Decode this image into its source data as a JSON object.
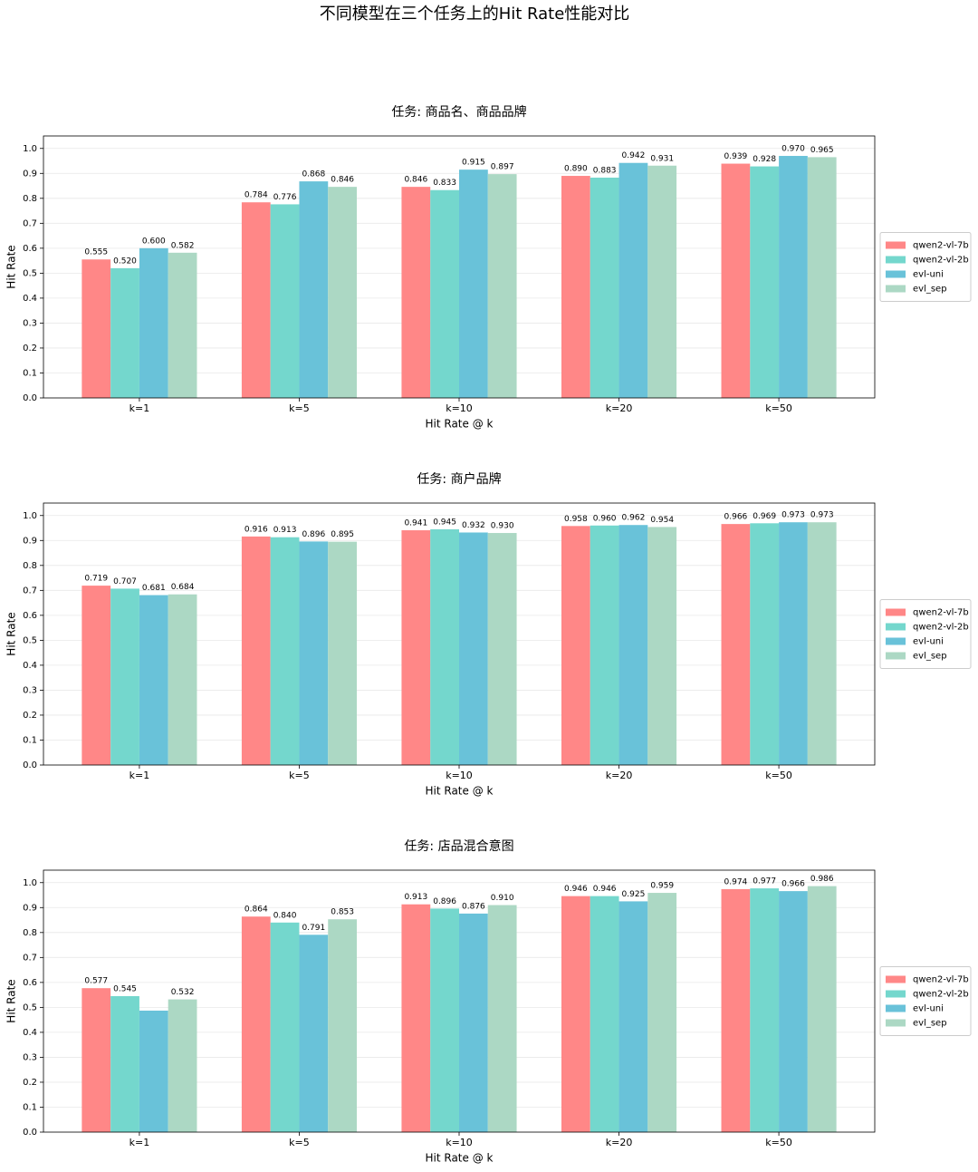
{
  "title": "不同模型在三个任务上的Hit Rate性能对比",
  "chart_data": [
    {
      "type": "bar",
      "title": "任务: 商品名、商品品牌",
      "x_label": "Hit Rate @ k",
      "y_label": "Hit Rate",
      "categories": [
        "k=1",
        "k=5",
        "k=10",
        "k=20",
        "k=50"
      ],
      "series": [
        {
          "name": "qwen2-vl-7b",
          "color": "#ff8787",
          "values": [
            0.555,
            0.784,
            0.846,
            0.89,
            0.939
          ],
          "value_labels": [
            "0.555",
            "0.784",
            "0.846",
            "0.890",
            "0.939"
          ]
        },
        {
          "name": "qwen2-vl-2b",
          "color": "#74d7cd",
          "values": [
            0.52,
            0.776,
            0.833,
            0.883,
            0.928
          ],
          "value_labels": [
            "0.520",
            "0.776",
            "0.833",
            "0.883",
            "0.928"
          ]
        },
        {
          "name": "evl-uni",
          "color": "#69c2d9",
          "values": [
            0.6,
            0.868,
            0.915,
            0.942,
            0.97
          ],
          "value_labels": [
            "0.600",
            "0.868",
            "0.915",
            "0.942",
            "0.970"
          ]
        },
        {
          "name": "evl_sep",
          "color": "#acd8c4",
          "values": [
            0.582,
            0.846,
            0.897,
            0.931,
            0.965
          ],
          "value_labels": [
            "0.582",
            "0.846",
            "0.897",
            "0.931",
            "0.965"
          ]
        }
      ],
      "ylim": [
        0,
        1.05
      ],
      "yticks": [
        {
          "value": 0,
          "label": "0.0"
        },
        0.1,
        0.2,
        0.3,
        0.4,
        0.5,
        0.6,
        0.7,
        0.8,
        0.9,
        {
          "value": 1,
          "label": "1.0"
        }
      ],
      "grid": true,
      "legend": "center right"
    },
    {
      "type": "bar",
      "title": "任务: 商户品牌",
      "x_label": "Hit Rate @ k",
      "y_label": "Hit Rate",
      "categories": [
        "k=1",
        "k=5",
        "k=10",
        "k=20",
        "k=50"
      ],
      "series": [
        {
          "name": "qwen2-vl-7b",
          "color": "#ff8787",
          "values": [
            0.719,
            0.916,
            0.941,
            0.958,
            0.966
          ],
          "value_labels": [
            "0.719",
            "0.916",
            "0.941",
            "0.958",
            "0.966"
          ]
        },
        {
          "name": "qwen2-vl-2b",
          "color": "#74d7cd",
          "values": [
            0.707,
            0.913,
            0.945,
            0.96,
            0.969
          ],
          "value_labels": [
            "0.707",
            "0.913",
            "0.945",
            "0.960",
            "0.969"
          ]
        },
        {
          "name": "evl-uni",
          "color": "#69c2d9",
          "values": [
            0.681,
            0.896,
            0.932,
            0.962,
            0.973
          ],
          "value_labels": [
            "0.681",
            "0.896",
            "0.932",
            "0.962",
            "0.973"
          ]
        },
        {
          "name": "evl_sep",
          "color": "#acd8c4",
          "values": [
            0.684,
            0.895,
            0.93,
            0.954,
            0.973
          ],
          "value_labels": [
            "0.684",
            "0.895",
            "0.930",
            "0.954",
            "0.973"
          ]
        }
      ],
      "ylim": [
        0,
        1.05
      ],
      "yticks": [
        {
          "value": 0,
          "label": "0.0"
        },
        0.1,
        0.2,
        0.3,
        0.4,
        0.5,
        0.6,
        0.7,
        0.8,
        0.9,
        {
          "value": 1,
          "label": "1.0"
        }
      ],
      "grid": true,
      "legend": "center right"
    },
    {
      "type": "bar",
      "title": "任务: 店品混合意图",
      "x_label": "Hit Rate @ k",
      "y_label": "Hit Rate",
      "categories": [
        "k=1",
        "k=5",
        "k=10",
        "k=20",
        "k=50"
      ],
      "series": [
        {
          "name": "qwen2-vl-7b",
          "color": "#ff8787",
          "values": [
            0.577,
            0.864,
            0.913,
            0.946,
            0.974
          ],
          "value_labels": [
            "0.577",
            "0.864",
            "0.913",
            "0.946",
            "0.974"
          ]
        },
        {
          "name": "qwen2-vl-2b",
          "color": "#74d7cd",
          "values": [
            0.545,
            0.84,
            0.896,
            0.946,
            0.977
          ],
          "value_labels": [
            "0.545",
            "0.840",
            "0.896",
            "0.946",
            "0.977"
          ]
        },
        {
          "name": "evl-uni",
          "color": "#69c2d9",
          "values": [
            0.487,
            0.791,
            0.876,
            0.925,
            0.966
          ],
          "value_labels": [
            null,
            "0.791",
            "0.876",
            "0.925",
            "0.966"
          ]
        },
        {
          "name": "evl_sep",
          "color": "#acd8c4",
          "values": [
            0.532,
            0.853,
            0.91,
            0.959,
            0.986
          ],
          "value_labels": [
            "0.532",
            "0.853",
            "0.910",
            "0.959",
            "0.986"
          ]
        }
      ],
      "ylim": [
        0,
        1.05
      ],
      "yticks": [
        {
          "value": 0,
          "label": "0.0"
        },
        0.1,
        0.2,
        0.3,
        0.4,
        0.5,
        0.6,
        0.7,
        0.8,
        0.9,
        {
          "value": 1,
          "label": "1.0"
        }
      ],
      "grid": true,
      "legend": "center right"
    }
  ]
}
